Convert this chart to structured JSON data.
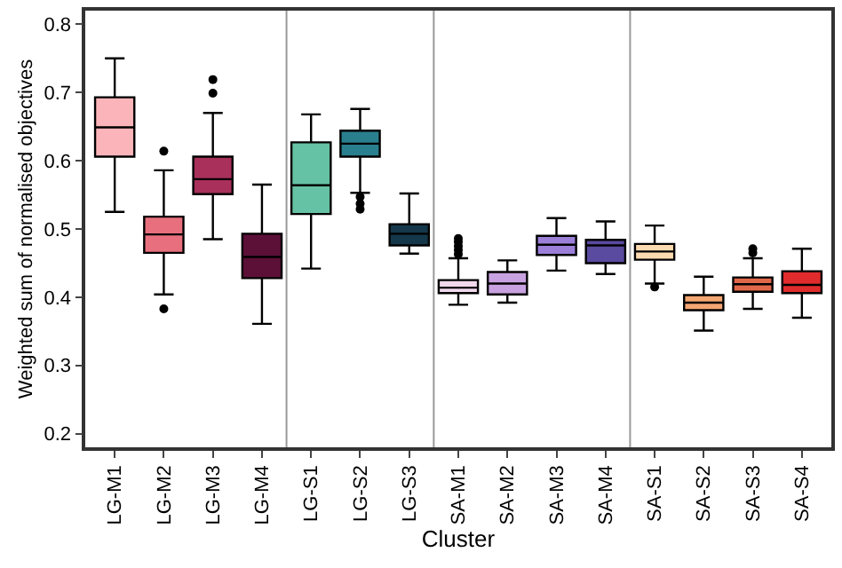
{
  "chart_data": {
    "type": "box",
    "xlabel": "Cluster",
    "ylabel": "Weighted sum of normalised objectives",
    "categories": [
      "LG-M1",
      "LG-M2",
      "LG-M3",
      "LG-M4",
      "LG-S1",
      "LG-S2",
      "LG-S3",
      "SA-M1",
      "SA-M2",
      "SA-M3",
      "SA-M4",
      "SA-S1",
      "SA-S2",
      "SA-S3",
      "SA-S4"
    ],
    "colors": [
      "#fbb4b9",
      "#e8707e",
      "#a8305a",
      "#5c1038",
      "#66c2a4",
      "#2a7f8f",
      "#14374a",
      "#f0d8ec",
      "#c8a2e0",
      "#9b7fd8",
      "#5a4aa0",
      "#fddbb0",
      "#f4a672",
      "#e0674a",
      "#e02c2c"
    ],
    "boxes": [
      {
        "low": 0.525,
        "q1": 0.606,
        "median": 0.649,
        "q3": 0.693,
        "high": 0.75
      },
      {
        "low": 0.404,
        "q1": 0.465,
        "median": 0.492,
        "q3": 0.518,
        "high": 0.586,
        "outliers": [
          0.614,
          0.383
        ]
      },
      {
        "low": 0.485,
        "q1": 0.551,
        "median": 0.573,
        "q3": 0.606,
        "high": 0.67,
        "outliers": [
          0.699,
          0.719
        ]
      },
      {
        "low": 0.361,
        "q1": 0.428,
        "median": 0.459,
        "q3": 0.493,
        "high": 0.565
      },
      {
        "low": 0.442,
        "q1": 0.522,
        "median": 0.564,
        "q3": 0.627,
        "high": 0.668
      },
      {
        "low": 0.553,
        "q1": 0.606,
        "median": 0.625,
        "q3": 0.644,
        "high": 0.676,
        "outliers": [
          0.547,
          0.537,
          0.529
        ]
      },
      {
        "low": 0.464,
        "q1": 0.476,
        "median": 0.493,
        "q3": 0.507,
        "high": 0.552
      },
      {
        "low": 0.389,
        "q1": 0.406,
        "median": 0.414,
        "q3": 0.425,
        "high": 0.457,
        "outliers": [
          0.463,
          0.469,
          0.475,
          0.481,
          0.486
        ]
      },
      {
        "low": 0.392,
        "q1": 0.404,
        "median": 0.42,
        "q3": 0.437,
        "high": 0.454
      },
      {
        "low": 0.439,
        "q1": 0.462,
        "median": 0.477,
        "q3": 0.49,
        "high": 0.516
      },
      {
        "low": 0.434,
        "q1": 0.45,
        "median": 0.476,
        "q3": 0.484,
        "high": 0.511
      },
      {
        "low": 0.42,
        "q1": 0.455,
        "median": 0.467,
        "q3": 0.478,
        "high": 0.505,
        "outliers": [
          0.415
        ]
      },
      {
        "low": 0.351,
        "q1": 0.381,
        "median": 0.392,
        "q3": 0.403,
        "high": 0.43
      },
      {
        "low": 0.383,
        "q1": 0.408,
        "median": 0.419,
        "q3": 0.429,
        "high": 0.457,
        "outliers": [
          0.465,
          0.471
        ]
      },
      {
        "low": 0.37,
        "q1": 0.406,
        "median": 0.418,
        "q3": 0.438,
        "high": 0.471
      }
    ],
    "ylim": [
      0.18,
      0.82
    ],
    "yticks": [
      0.2,
      0.3,
      0.4,
      0.5,
      0.6,
      0.7,
      0.8
    ],
    "grid": false
  }
}
